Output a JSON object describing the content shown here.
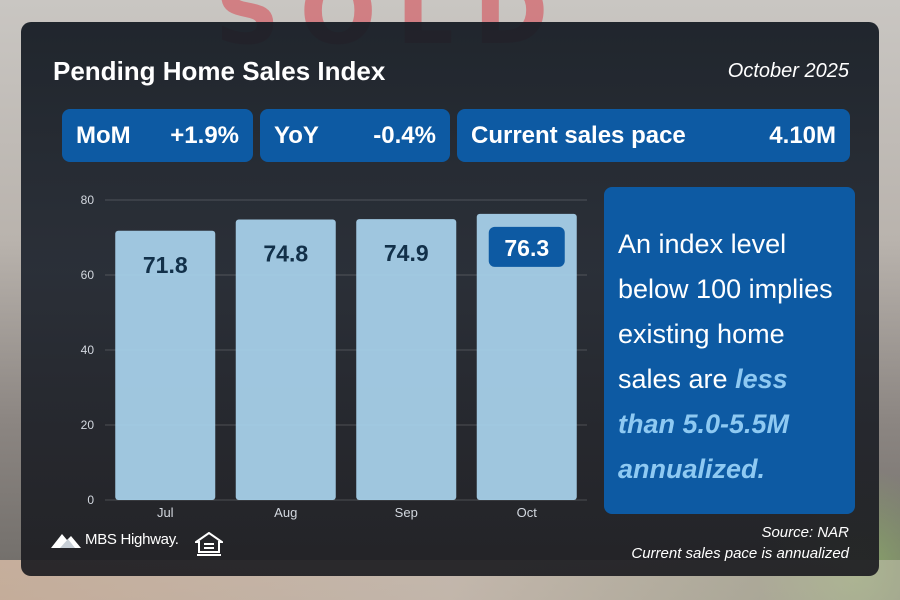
{
  "header": {
    "title": "Pending Home Sales Index",
    "date": "October 2025"
  },
  "stats": {
    "mom_label": "MoM",
    "mom_value": "+1.9%",
    "yoy_label": "YoY",
    "yoy_value": "-0.4%",
    "pace_label": "Current sales pace",
    "pace_value": "4.10M"
  },
  "note": {
    "text_plain": "An index level below 100 implies existing home sales are",
    "text_emphasis": "less than 5.0-5.5M annualized."
  },
  "footer": {
    "source": "Source: NAR",
    "pace_note": "Current sales pace is annualized",
    "logo_text": "MBS Highway."
  },
  "colors": {
    "accent": "#0d5aa3",
    "bar_fill": "#a9d4ee",
    "emphasis": "#8ec9f2"
  },
  "chart_data": {
    "type": "bar",
    "categories": [
      "Jul",
      "Aug",
      "Sep",
      "Oct"
    ],
    "values": [
      71.8,
      74.8,
      74.9,
      76.3
    ],
    "value_labels": [
      "71.8",
      "74.8",
      "74.9",
      "76.3"
    ],
    "highlight_index": 3,
    "ylim": [
      0,
      80
    ],
    "yticks": [
      0,
      20,
      40,
      60,
      80
    ],
    "grid": true
  }
}
